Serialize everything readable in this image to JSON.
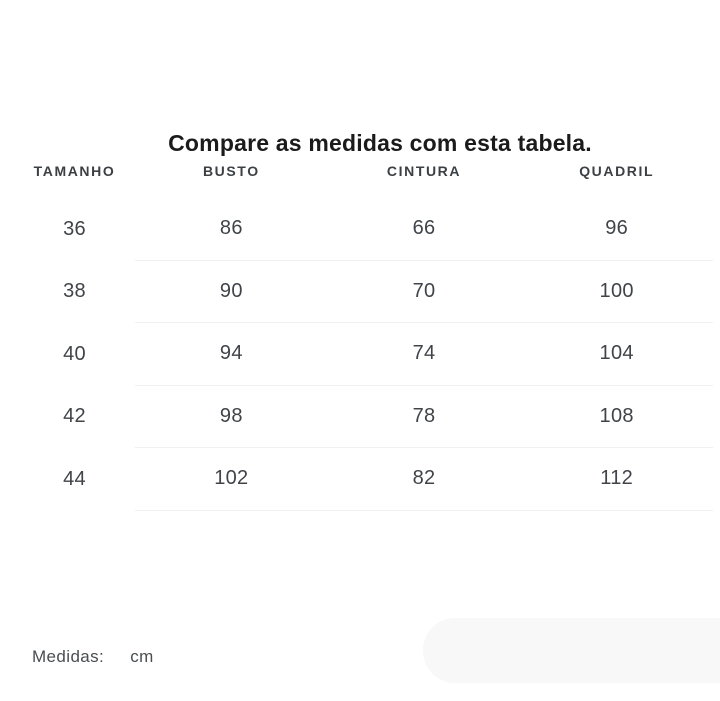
{
  "title": "Compare as medidas com esta tabela.",
  "table": {
    "columns": [
      "TAMANHO",
      "BUSTO",
      "CINTURA",
      "QUADRIL"
    ],
    "rows": [
      {
        "size": "36",
        "busto": "86",
        "cintura": "66",
        "quadril": "96"
      },
      {
        "size": "38",
        "busto": "90",
        "cintura": "70",
        "quadril": "100"
      },
      {
        "size": "40",
        "busto": "94",
        "cintura": "74",
        "quadril": "104"
      },
      {
        "size": "42",
        "busto": "98",
        "cintura": "78",
        "quadril": "108"
      },
      {
        "size": "44",
        "busto": "102",
        "cintura": "82",
        "quadril": "112"
      }
    ]
  },
  "footer": {
    "label": "Medidas:",
    "unit": "cm"
  },
  "colors": {
    "title_text": "#1b1b1b",
    "header_text": "#3c4045",
    "cell_text": "#404449",
    "divider": "#f0f0f0",
    "pill_background": "#f8f8f8",
    "page_background": "#ffffff"
  }
}
